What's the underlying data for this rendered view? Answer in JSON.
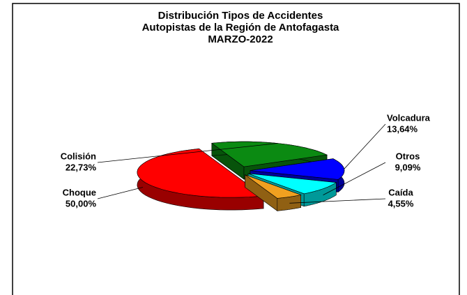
{
  "chart_data": {
    "type": "pie3d",
    "title": [
      "Distribución Tipos de Accidentes",
      "Autopistas de la Región de Antofagasta",
      "MARZO-2022"
    ],
    "categories": [
      "Choque",
      "Colisión",
      "Volcadura",
      "Otros",
      "Caída"
    ],
    "values": [
      50,
      22.73,
      13.64,
      9.09,
      4.55
    ],
    "value_labels": [
      "50,00%",
      "22,73%",
      "13,64%",
      "9,09%",
      "4,55%"
    ],
    "colors": [
      "#ff0000",
      "#0b8a12",
      "#0000ff",
      "#00ffff",
      "#f0a020"
    ]
  }
}
